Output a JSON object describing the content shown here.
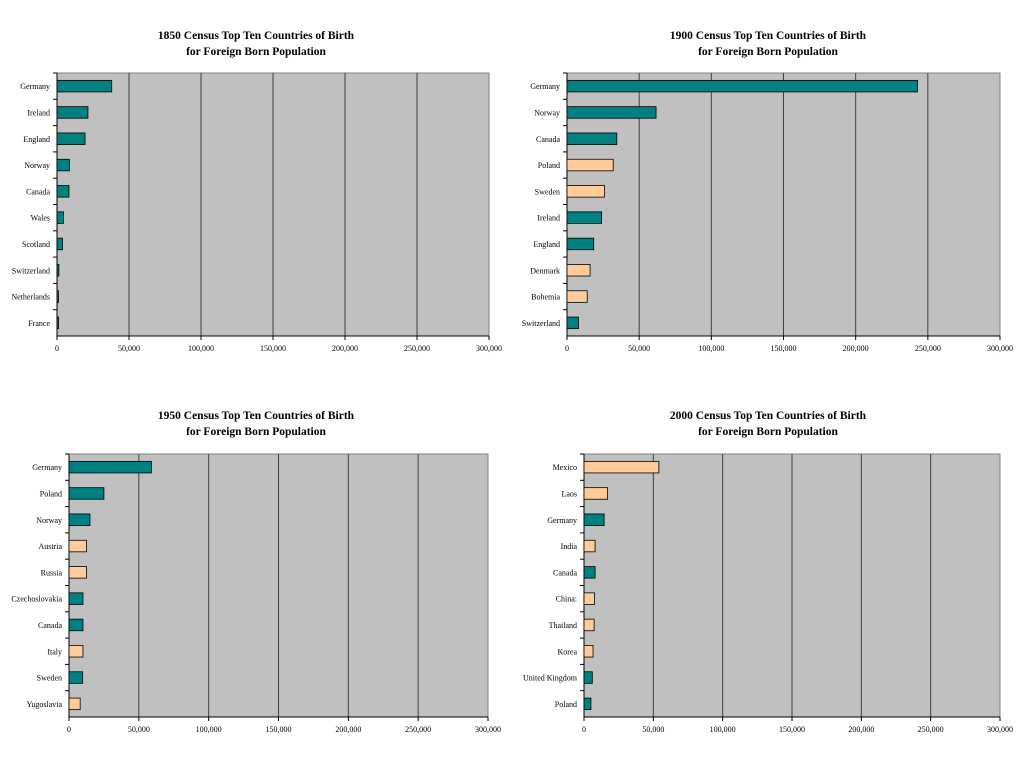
{
  "colors": {
    "plot_background": "#c0c0c0",
    "teal": "#008080",
    "peach": "#ffcc99",
    "gridline": "#404040"
  },
  "chart_data": [
    {
      "type": "bar",
      "orientation": "horizontal",
      "title_line1": "1850 Census Top Ten Countries of Birth",
      "title_line2": "for Foreign Born Population",
      "xlim": [
        0,
        300000
      ],
      "xticks": [
        "0",
        "50,000",
        "100,000",
        "150,000",
        "200,000",
        "250,000",
        "300,000"
      ],
      "categories": [
        "Germany",
        "Ireland",
        "England",
        "Norway",
        "Canada",
        "Wales",
        "Scotland",
        "Switzerland",
        "Netherlands",
        "France"
      ],
      "values": [
        38000,
        21500,
        19500,
        8600,
        8300,
        4500,
        3800,
        1300,
        1000,
        900
      ],
      "bar_colors": [
        "teal",
        "teal",
        "teal",
        "teal",
        "teal",
        "teal",
        "teal",
        "teal",
        "teal",
        "teal"
      ],
      "grid": true
    },
    {
      "type": "bar",
      "orientation": "horizontal",
      "title_line1": "1900 Census Top Ten Countries of Birth",
      "title_line2": "for Foreign Born Population",
      "xlim": [
        0,
        300000
      ],
      "xticks": [
        "0",
        "50,000",
        "100,000",
        "150,000",
        "200,000",
        "250,000",
        "300,000"
      ],
      "categories": [
        "Germany",
        "Norway",
        "Canada",
        "Poland",
        "Sweden",
        "Ireland",
        "England",
        "Denmark",
        "Bohemia",
        "Switzerland"
      ],
      "values": [
        242800,
        61700,
        34500,
        32000,
        26000,
        24000,
        18500,
        16000,
        14000,
        8000
      ],
      "bar_colors": [
        "teal",
        "teal",
        "teal",
        "peach",
        "peach",
        "teal",
        "teal",
        "peach",
        "peach",
        "teal"
      ],
      "grid": true
    },
    {
      "type": "bar",
      "orientation": "horizontal",
      "title_line1": "1950 Census Top Ten Countries of Birth",
      "title_line2": "for Foreign Born Population",
      "xlim": [
        0,
        300000
      ],
      "xticks": [
        "0",
        "50,000",
        "100,000",
        "150,000",
        "200,000",
        "250,000",
        "300,000"
      ],
      "categories": [
        "Germany",
        "Poland",
        "Norway",
        "Austria",
        "Russia",
        "Czechoslovakia",
        "Canada",
        "Italy",
        "Sweden",
        "Yugoslavia"
      ],
      "values": [
        59000,
        25000,
        15000,
        12500,
        12500,
        10000,
        10000,
        10000,
        9800,
        8000
      ],
      "bar_colors": [
        "teal",
        "teal",
        "teal",
        "peach",
        "peach",
        "teal",
        "teal",
        "peach",
        "teal",
        "peach"
      ],
      "grid": true
    },
    {
      "type": "bar",
      "orientation": "horizontal",
      "title_line1": "2000 Census Top Ten Countries of Birth",
      "title_line2": "for Foreign Born Population",
      "xlim": [
        0,
        300000
      ],
      "xticks": [
        "0",
        "50,000",
        "100,000",
        "150,000",
        "200,000",
        "250,000",
        "300,000"
      ],
      "categories": [
        "Mexico",
        "Laos",
        "Germany",
        "India",
        "Canada",
        "China:",
        "Thailand",
        "Korea",
        "United Kingdom",
        "Poland"
      ],
      "values": [
        54000,
        17000,
        14500,
        8000,
        8000,
        7500,
        7300,
        6500,
        6000,
        5000
      ],
      "bar_colors": [
        "peach",
        "peach",
        "teal",
        "peach",
        "teal",
        "peach",
        "peach",
        "peach",
        "teal",
        "teal"
      ],
      "grid": true
    }
  ]
}
